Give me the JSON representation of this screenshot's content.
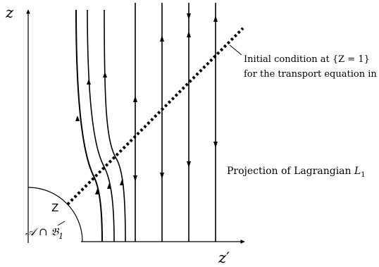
{
  "diagram": {
    "axis_z": "z",
    "axis_zprime": "z′",
    "curve_Z": "Z",
    "region_label": "𝒜 ∩ 𝔅",
    "region_subscript": "1",
    "annotation_initial_line1": "Initial condition at {Z = 1}",
    "annotation_initial_line2": "for the transport equation in Z",
    "annotation_projection": "Projection of Lagrangian ",
    "annotation_projection_L": "L",
    "annotation_projection_sub": "1"
  }
}
